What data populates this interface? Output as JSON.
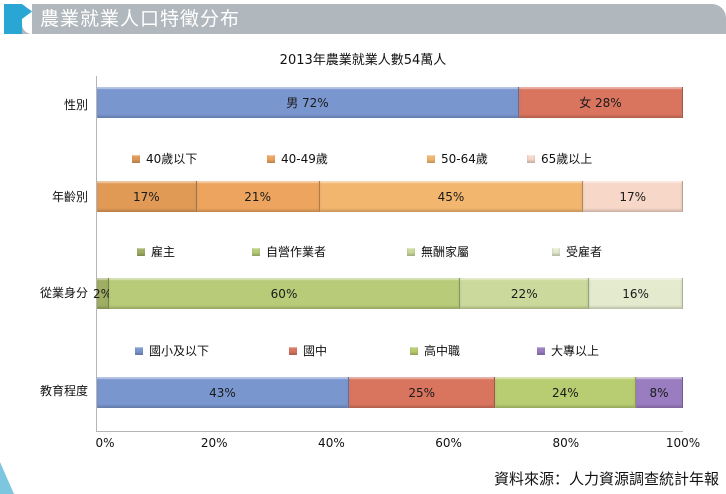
{
  "header": {
    "title": "農業就業人口特徵分布",
    "accent_color": "#2aa6d4",
    "bar_color": "#b0b8be"
  },
  "chart_data": {
    "type": "bar",
    "orientation": "horizontal",
    "stacked": true,
    "normalized": true,
    "title": "2013年農業就業人數54萬人",
    "xlabel": "",
    "ylabel": "",
    "xlim": [
      0,
      100
    ],
    "x_ticks": [
      "0%",
      "20%",
      "40%",
      "60%",
      "80%",
      "100%"
    ],
    "grid": false,
    "groups": [
      {
        "category": "性別",
        "legend": false,
        "series": [
          {
            "name": "男",
            "value": 72,
            "label": "男 72%",
            "color": "#7a96cf"
          },
          {
            "name": "女",
            "value": 28,
            "label": "女 28%",
            "color": "#d9745f"
          }
        ]
      },
      {
        "category": "年齡別",
        "legend": true,
        "series": [
          {
            "name": "40歲以下",
            "value": 17,
            "label": "17%",
            "color": "#e09a56"
          },
          {
            "name": "40-49歲",
            "value": 21,
            "label": "21%",
            "color": "#eda45e"
          },
          {
            "name": "50-64歲",
            "value": 45,
            "label": "45%",
            "color": "#f3b66e"
          },
          {
            "name": "65歲以上",
            "value": 17,
            "label": "17%",
            "color": "#f6d7c8"
          }
        ]
      },
      {
        "category": "從業身分",
        "legend": true,
        "series": [
          {
            "name": "雇主",
            "value": 2,
            "label": "2%",
            "color": "#9fae62"
          },
          {
            "name": "自營作業者",
            "value": 60,
            "label": "60%",
            "color": "#b7cb78"
          },
          {
            "name": "無酬家屬",
            "value": 22,
            "label": "22%",
            "color": "#cbd99c"
          },
          {
            "name": "受雇者",
            "value": 16,
            "label": "16%",
            "color": "#e3eacd"
          }
        ]
      },
      {
        "category": "教育程度",
        "legend": true,
        "series": [
          {
            "name": "國小及以下",
            "value": 43,
            "label": "43%",
            "color": "#7a96cf"
          },
          {
            "name": "國中",
            "value": 25,
            "label": "25%",
            "color": "#d9745f"
          },
          {
            "name": "高中職",
            "value": 24,
            "label": "24%",
            "color": "#b8cc72"
          },
          {
            "name": "大專以上",
            "value": 8,
            "label": "8%",
            "color": "#9a7cc0"
          }
        ]
      }
    ]
  },
  "footer": {
    "source": "資料來源：人力資源調查統計年報"
  }
}
